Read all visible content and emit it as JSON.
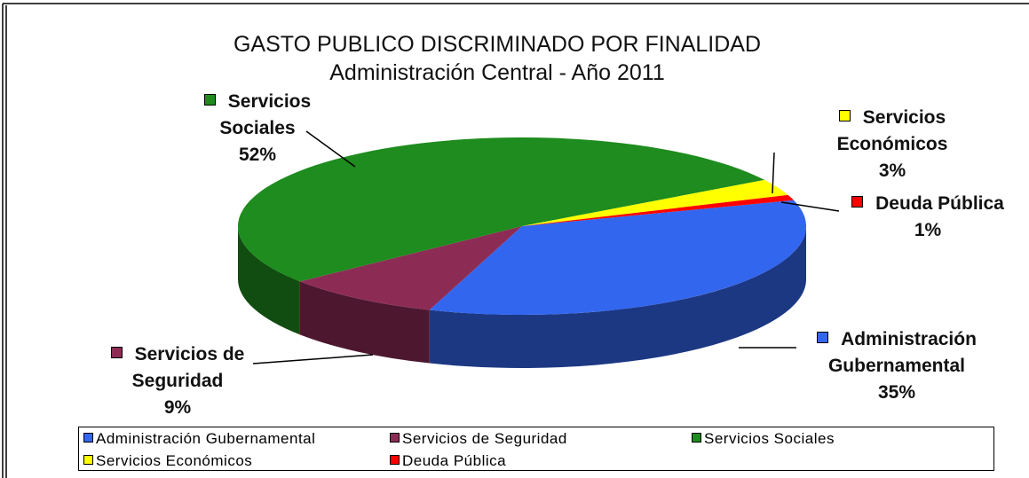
{
  "chart_data": {
    "type": "pie",
    "title": "GASTO PUBLICO DISCRIMINADO POR FINALIDAD",
    "subtitle": "Administración Central - Año 2011",
    "categories": [
      "Administración Gubernamental",
      "Servicios de Seguridad",
      "Servicios Sociales",
      "Servicios Económicos",
      "Deuda Pública"
    ],
    "values": [
      35,
      9,
      52,
      3,
      1
    ],
    "value_labels": [
      "35%",
      "9%",
      "52%",
      "3%",
      "1%"
    ],
    "colors": [
      "#3366ee",
      "#8c2c55",
      "#1e8c1e",
      "#ffff00",
      "#ff0000"
    ],
    "legend": "bottom"
  }
}
